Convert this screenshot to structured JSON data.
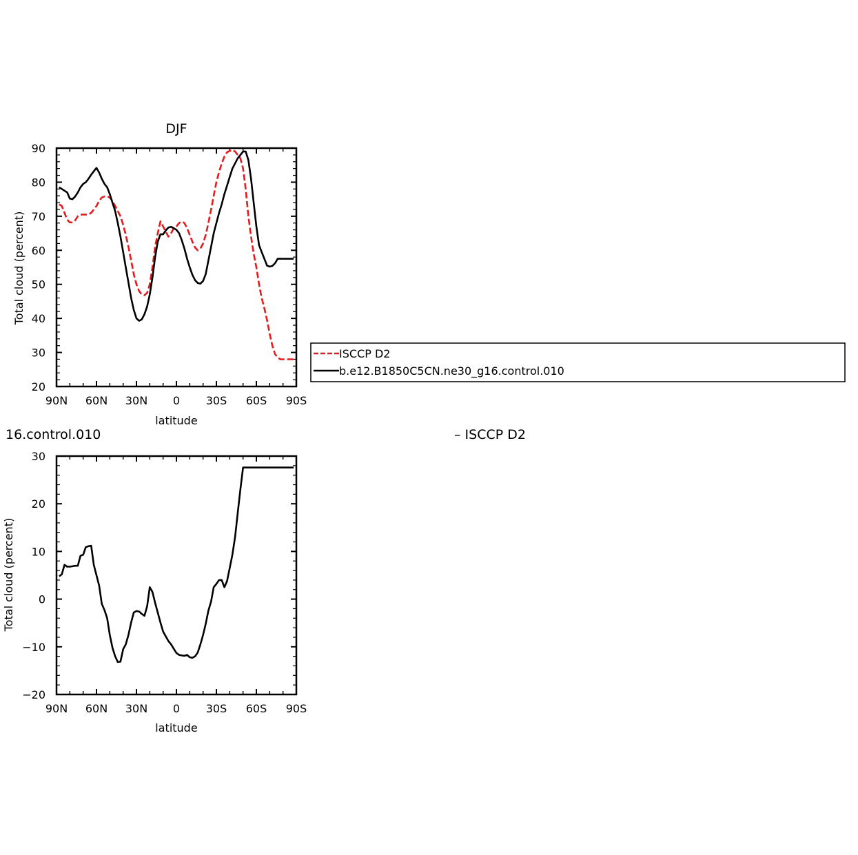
{
  "chart_data": [
    {
      "type": "line",
      "title": "DJF",
      "xlabel": "latitude",
      "ylabel": "Total cloud (percent)",
      "xlim": [
        90,
        -90
      ],
      "ylim": [
        20,
        90
      ],
      "x_ticks": [
        90,
        60,
        30,
        0,
        -30,
        -60,
        -90
      ],
      "x_tick_labels": [
        "90N",
        "60N",
        "30N",
        "0",
        "30S",
        "60S",
        "90S"
      ],
      "y_ticks": [
        20,
        30,
        40,
        50,
        60,
        70,
        80,
        90
      ],
      "y_tick_labels": [
        "20",
        "30",
        "40",
        "50",
        "60",
        "70",
        "80",
        "90"
      ],
      "grid": false,
      "legend_position": "right",
      "series": [
        {
          "name": "ISCCP D2",
          "color": "#e41a1c",
          "style": "dashed",
          "x": [
            88,
            86,
            84,
            82,
            80,
            78,
            76,
            74,
            72,
            70,
            68,
            66,
            64,
            62,
            60,
            58,
            56,
            54,
            52,
            50,
            48,
            46,
            44,
            42,
            40,
            38,
            36,
            34,
            32,
            30,
            28,
            26,
            24,
            22,
            20,
            18,
            16,
            14,
            12,
            10,
            8,
            6,
            4,
            2,
            0,
            -2,
            -4,
            -6,
            -8,
            -10,
            -12,
            -14,
            -16,
            -18,
            -20,
            -22,
            -24,
            -26,
            -28,
            -30,
            -32,
            -34,
            -36,
            -38,
            -40,
            -42,
            -44,
            -46,
            -48,
            -50,
            -52,
            -54,
            -56,
            -58,
            -60,
            -62,
            -64,
            -66,
            -68,
            -70,
            -72,
            -74,
            -76,
            -78,
            -80,
            -82,
            -84,
            -86,
            -88
          ],
          "values": [
            73.5,
            73,
            71,
            69,
            68.2,
            68.2,
            68.8,
            70,
            70.5,
            70.5,
            70.5,
            70.5,
            71,
            72,
            73,
            74.5,
            75.5,
            75.8,
            75.8,
            75.5,
            74.5,
            73,
            71.5,
            70,
            67.5,
            64.5,
            61,
            57,
            53,
            50,
            48,
            47,
            46.8,
            47.5,
            50,
            55,
            61,
            65,
            68.5,
            67,
            65.5,
            64,
            65,
            66.5,
            67,
            68,
            68.5,
            68,
            66.5,
            64.5,
            62.5,
            60.8,
            60,
            60.5,
            62,
            64.5,
            68,
            72,
            76,
            80,
            83,
            85.5,
            87.5,
            88.8,
            89.2,
            89.5,
            89,
            88,
            87,
            84,
            78,
            70,
            64,
            59,
            55,
            50,
            46,
            43,
            39.5,
            35.5,
            32,
            29.5,
            28.5,
            28,
            28,
            28,
            28,
            28,
            28
          ]
        },
        {
          "name": "b.e12.B1850C5CN.ne30_g16.control.010",
          "color": "#000000",
          "style": "solid",
          "x": [
            88,
            86,
            84,
            82,
            80,
            78,
            76,
            74,
            72,
            70,
            68,
            66,
            64,
            62,
            60,
            58,
            56,
            54,
            52,
            50,
            48,
            46,
            44,
            42,
            40,
            38,
            36,
            34,
            32,
            30,
            28,
            26,
            24,
            22,
            20,
            18,
            16,
            14,
            12,
            10,
            8,
            6,
            4,
            2,
            0,
            -2,
            -4,
            -6,
            -8,
            -10,
            -12,
            -14,
            -16,
            -18,
            -20,
            -22,
            -24,
            -26,
            -28,
            -30,
            -32,
            -34,
            -36,
            -38,
            -40,
            -42,
            -44,
            -46,
            -48,
            -50,
            -52,
            -54,
            -56,
            -58,
            -60,
            -62,
            -64,
            -66,
            -68,
            -70,
            -72,
            -74,
            -76,
            -78,
            -80,
            -82,
            -84,
            -86,
            -88
          ],
          "values": [
            78.5,
            78,
            77.5,
            77,
            75.2,
            75,
            75.8,
            77,
            78.5,
            79.5,
            80,
            81,
            82.2,
            83.2,
            84.2,
            82.8,
            81,
            79.5,
            78.5,
            76.5,
            74,
            71.5,
            68,
            64,
            59.5,
            55,
            50.5,
            46,
            42.5,
            40,
            39.3,
            39.7,
            41.2,
            43.5,
            47,
            52,
            58,
            62.5,
            64.7,
            64.7,
            65.8,
            66.7,
            66.9,
            66.5,
            66,
            65,
            63,
            60.5,
            57.5,
            55,
            52.8,
            51.2,
            50.4,
            50.2,
            51,
            53,
            57,
            61,
            65,
            68,
            71,
            73.5,
            76.5,
            79,
            81.5,
            84,
            85.5,
            87,
            88,
            89,
            89,
            86.5,
            81,
            74,
            67,
            61.5,
            59.5,
            57.5,
            55.5,
            55.2,
            55.4,
            56.2,
            57.5,
            57.5,
            57.5,
            57.5,
            57.5,
            57.5,
            57.5
          ]
        }
      ]
    },
    {
      "type": "line",
      "title": "16.control.010",
      "subtitle": "– ISCCP D2",
      "xlabel": "latitude",
      "ylabel": "Total cloud (percent)",
      "xlim": [
        90,
        -90
      ],
      "ylim": [
        -20,
        30
      ],
      "x_ticks": [
        90,
        60,
        30,
        0,
        -30,
        -60,
        -90
      ],
      "x_tick_labels": [
        "90N",
        "60N",
        "30N",
        "0",
        "30S",
        "60S",
        "90S"
      ],
      "y_ticks": [
        -20,
        -10,
        0,
        10,
        20,
        30
      ],
      "y_tick_labels": [
        "−20",
        "−10",
        "0",
        "10",
        "20",
        "30"
      ],
      "grid": false,
      "series": [
        {
          "color": "#000000",
          "style": "solid",
          "x": [
            88,
            86,
            84,
            82,
            80,
            78,
            76,
            74,
            72,
            70,
            68,
            66,
            64,
            62,
            60,
            58,
            56,
            54,
            52,
            50,
            48,
            46,
            44,
            42,
            40,
            38,
            36,
            34,
            32,
            30,
            28,
            26,
            24,
            22,
            20,
            18,
            16,
            14,
            12,
            10,
            8,
            6,
            4,
            2,
            0,
            -2,
            -4,
            -6,
            -8,
            -10,
            -12,
            -14,
            -16,
            -18,
            -20,
            -22,
            -24,
            -26,
            -28,
            -30,
            -32,
            -34,
            -36,
            -38,
            -40,
            -42,
            -44,
            -46,
            -48,
            -50,
            -52,
            -54,
            -56,
            -58,
            -60,
            -62,
            -64,
            -66,
            -68,
            -70,
            -72,
            -74,
            -76,
            -78,
            -80,
            -82,
            -84,
            -86,
            -88
          ],
          "values": [
            4.8,
            5.2,
            7.2,
            6.8,
            6.8,
            6.9,
            7,
            7,
            9.1,
            9.3,
            10.9,
            11.1,
            11.2,
            7.2,
            5,
            2.8,
            -1,
            -2.3,
            -4,
            -7.5,
            -10.2,
            -12,
            -13.2,
            -13.1,
            -10.5,
            -9.5,
            -7.5,
            -4.9,
            -2.8,
            -2.5,
            -2.6,
            -3.1,
            -3.5,
            -1.5,
            2.5,
            1.5,
            -0.8,
            -2.8,
            -4.9,
            -6.8,
            -7.8,
            -8.8,
            -9.5,
            -10.4,
            -11.3,
            -11.7,
            -11.8,
            -11.9,
            -11.7,
            -12.2,
            -12.3,
            -12,
            -11.2,
            -9.5,
            -7.5,
            -5.2,
            -2.4,
            -0.5,
            2.5,
            3.2,
            4,
            4,
            2.5,
            3.8,
            6.5,
            9.3,
            13,
            18,
            23,
            27.6,
            27.6,
            27.6,
            27.6,
            27.6,
            27.6,
            27.6,
            27.6,
            27.6,
            27.6,
            27.6,
            27.6,
            27.6,
            27.6,
            27.6,
            27.6,
            27.6,
            27.6,
            27.6,
            27.6
          ]
        }
      ]
    }
  ]
}
